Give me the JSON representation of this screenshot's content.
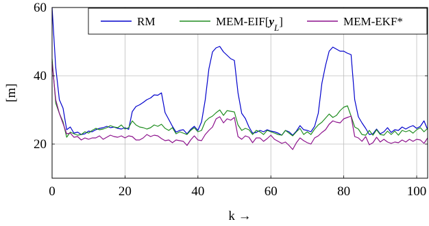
{
  "chart_data": {
    "type": "line",
    "xlabel": "k →",
    "ylabel": "[m]",
    "xlim": [
      0,
      103
    ],
    "ylim": [
      10,
      60
    ],
    "xticks": [
      0,
      20,
      40,
      60,
      80,
      100
    ],
    "yticks": [
      20,
      40,
      60
    ],
    "grid": true,
    "legend_placement": "top-right",
    "x": [
      0,
      1,
      2,
      3,
      4,
      5,
      6,
      7,
      8,
      9,
      10,
      11,
      12,
      13,
      14,
      15,
      16,
      17,
      18,
      19,
      20,
      21,
      22,
      23,
      24,
      25,
      26,
      27,
      28,
      29,
      30,
      31,
      32,
      33,
      34,
      35,
      36,
      37,
      38,
      39,
      40,
      41,
      42,
      43,
      44,
      45,
      46,
      47,
      48,
      49,
      50,
      51,
      52,
      53,
      54,
      55,
      56,
      57,
      58,
      59,
      60,
      61,
      62,
      63,
      64,
      65,
      66,
      67,
      68,
      69,
      70,
      71,
      72,
      73,
      74,
      75,
      76,
      77,
      78,
      79,
      80,
      81,
      82,
      83,
      84,
      85,
      86,
      87,
      88,
      89,
      90,
      91,
      92,
      93,
      94,
      95,
      96,
      97,
      98,
      99,
      100,
      101,
      102,
      103
    ],
    "series": [
      {
        "name": "RM",
        "color": "#0000cc",
        "values": [
          60.0,
          42.5,
          33.0,
          30.5,
          24.2,
          25.0,
          23.2,
          23.5,
          22.8,
          23.0,
          23.8,
          23.6,
          24.2,
          24.6,
          24.8,
          25.2,
          24.8,
          25.0,
          24.6,
          24.4,
          24.8,
          24.3,
          29.5,
          31.0,
          31.5,
          32.2,
          33.0,
          33.5,
          34.4,
          34.3,
          35.0,
          29.2,
          27.2,
          25.2,
          23.5,
          24.0,
          24.2,
          23.0,
          24.3,
          25.2,
          24.0,
          26.5,
          33.0,
          42.0,
          47.0,
          48.2,
          48.6,
          47.0,
          46.0,
          45.0,
          44.5,
          35.0,
          29.0,
          27.5,
          25.0,
          23.2,
          23.4,
          24.0,
          23.6,
          24.2,
          23.8,
          23.6,
          23.2,
          22.6,
          24.0,
          23.6,
          22.6,
          23.8,
          25.4,
          24.2,
          24.0,
          23.6,
          25.2,
          29.0,
          37.8,
          43.0,
          47.2,
          48.4,
          47.8,
          47.2,
          47.2,
          46.6,
          46.2,
          33.0,
          28.0,
          26.2,
          24.6,
          22.8,
          23.0,
          24.4,
          23.0,
          23.6,
          24.8,
          23.4,
          24.2,
          24.0,
          25.0,
          24.4,
          25.0,
          25.4,
          24.6,
          25.2,
          26.8,
          24.2
        ]
      },
      {
        "name": "MEM-EIF[y_L]",
        "color": "#1e8c1e",
        "values": [
          45.0,
          32.0,
          29.0,
          26.5,
          22.0,
          23.5,
          23.0,
          22.6,
          22.8,
          23.6,
          23.2,
          24.0,
          24.6,
          24.2,
          24.4,
          24.8,
          25.4,
          25.0,
          24.8,
          25.6,
          24.4,
          24.8,
          26.8,
          25.6,
          25.0,
          24.8,
          24.4,
          24.8,
          25.6,
          25.2,
          25.8,
          24.6,
          24.0,
          24.8,
          23.0,
          23.6,
          23.2,
          22.8,
          24.0,
          24.8,
          23.6,
          24.0,
          26.6,
          27.6,
          28.2,
          29.2,
          30.0,
          28.4,
          29.8,
          29.6,
          29.4,
          25.6,
          24.0,
          24.6,
          24.2,
          22.8,
          24.0,
          23.6,
          22.8,
          24.0,
          23.6,
          23.2,
          22.8,
          22.6,
          24.0,
          23.2,
          22.4,
          23.6,
          24.6,
          22.8,
          23.6,
          22.8,
          24.4,
          25.6,
          26.4,
          27.6,
          28.8,
          27.8,
          28.4,
          29.8,
          30.8,
          31.2,
          28.2,
          25.0,
          24.4,
          22.8,
          22.6,
          24.0,
          22.6,
          24.2,
          22.8,
          22.6,
          23.8,
          22.8,
          23.8,
          22.6,
          24.0,
          23.6,
          24.0,
          23.2,
          24.2,
          24.8,
          23.6,
          24.6
        ]
      },
      {
        "name": "MEM-EKF*",
        "color": "#8b0f8b",
        "values": [
          44.0,
          33.0,
          29.0,
          26.0,
          23.0,
          23.2,
          22.0,
          22.2,
          21.2,
          21.8,
          21.4,
          21.8,
          21.8,
          22.4,
          21.4,
          22.0,
          22.6,
          22.2,
          22.0,
          22.4,
          21.8,
          22.4,
          22.2,
          21.2,
          21.2,
          21.8,
          22.8,
          22.2,
          22.6,
          22.4,
          21.6,
          21.0,
          21.2,
          20.4,
          21.2,
          21.0,
          20.8,
          19.6,
          21.2,
          22.4,
          21.2,
          21.0,
          22.8,
          24.0,
          25.0,
          27.4,
          28.0,
          26.2,
          27.4,
          27.0,
          27.8,
          22.2,
          21.4,
          22.4,
          22.0,
          20.4,
          21.8,
          21.8,
          20.8,
          21.6,
          22.6,
          21.4,
          20.8,
          20.2,
          20.6,
          19.6,
          18.4,
          20.4,
          21.8,
          21.0,
          20.4,
          20.0,
          21.8,
          22.4,
          23.4,
          24.2,
          25.8,
          26.8,
          26.4,
          26.2,
          27.4,
          27.8,
          28.2,
          22.2,
          21.8,
          20.8,
          22.2,
          19.8,
          20.4,
          22.0,
          20.6,
          21.4,
          20.6,
          20.2,
          20.6,
          20.4,
          21.2,
          20.6,
          21.4,
          20.8,
          21.4,
          21.2,
          20.2,
          21.8
        ]
      }
    ]
  }
}
